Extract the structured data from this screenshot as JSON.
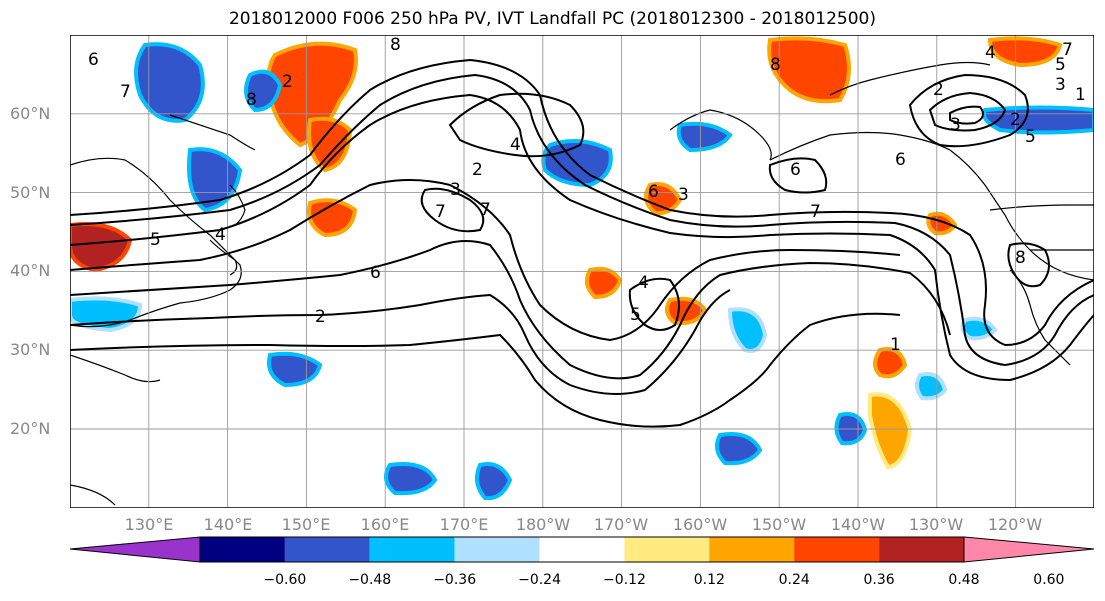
{
  "title": "2018012000 F006 250 hPa PV, IVT Landfall PC (2018012300 - 2018012500)",
  "lat_labels": [
    "60°N",
    "50°N",
    "40°N",
    "30°N",
    "20°N"
  ],
  "lon_labels": [
    "130°E",
    "140°E",
    "150°E",
    "160°E",
    "170°E",
    "180°W",
    "170°W",
    "160°W",
    "150°W",
    "140°W",
    "130°W",
    "120°W"
  ],
  "colorbar": {
    "tick_labels": [
      "−0.60",
      "−0.48",
      "−0.36",
      "−0.24",
      "−0.12",
      "0.12",
      "0.24",
      "0.36",
      "0.48",
      "0.60"
    ],
    "colors": [
      "#9933cc",
      "#000080",
      "#3355cc",
      "#00bfff",
      "#b0e0ff",
      "#ffffff",
      "#ffeb80",
      "#ffa500",
      "#ff4500",
      "#b22222",
      "#ff88aa"
    ]
  },
  "contour_labels": [
    "6",
    "7",
    "8",
    "2",
    "4",
    "5",
    "6",
    "7",
    "8",
    "1",
    "2",
    "3",
    "4",
    "5",
    "6",
    "7",
    "8",
    "2",
    "3",
    "4",
    "5",
    "6",
    "7",
    "2",
    "3",
    "5",
    "7",
    "1",
    "2",
    "3",
    "4",
    "6",
    "8"
  ],
  "map_extent": {
    "lon_min": 120,
    "lon_max": 250,
    "lat_min": 10,
    "lat_max": 70
  },
  "colors": {
    "land_outline": "#000000",
    "grid": "#999999",
    "contour": "#000000"
  }
}
